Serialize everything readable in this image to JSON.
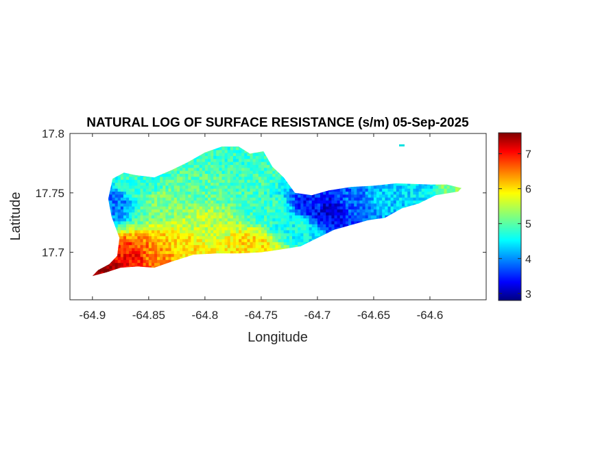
{
  "chart_data": {
    "type": "heatmap",
    "title": "NATURAL LOG OF SURFACE RESISTANCE (s/m) 05-Sep-2025",
    "xlabel": "Longitude",
    "ylabel": "Latitude",
    "xlim": [
      -64.92,
      -64.55
    ],
    "ylim": [
      17.66,
      17.8
    ],
    "xticks": [
      -64.9,
      -64.85,
      -64.8,
      -64.75,
      -64.7,
      -64.65,
      -64.6
    ],
    "xtick_labels": [
      "-64.9",
      "-64.85",
      "-64.8",
      "-64.75",
      "-64.7",
      "-64.65",
      "-64.6"
    ],
    "yticks": [
      17.7,
      17.75,
      17.8
    ],
    "ytick_labels": [
      "17.7",
      "17.75",
      "17.8"
    ],
    "colorbar": {
      "colormap": "jet",
      "clim": [
        2.8,
        7.6
      ],
      "ticks": [
        3,
        4,
        5,
        6,
        7
      ],
      "tick_labels": [
        "3",
        "4",
        "5",
        "6",
        "7"
      ],
      "placement": "right"
    },
    "grid": false,
    "island_outline": [
      [
        -64.9,
        17.68
      ],
      [
        -64.895,
        17.685
      ],
      [
        -64.885,
        17.69
      ],
      [
        -64.878,
        17.697
      ],
      [
        -64.876,
        17.712
      ],
      [
        -64.883,
        17.73
      ],
      [
        -64.886,
        17.745
      ],
      [
        -64.882,
        17.762
      ],
      [
        -64.872,
        17.767
      ],
      [
        -64.862,
        17.765
      ],
      [
        -64.845,
        17.763
      ],
      [
        -64.83,
        17.769
      ],
      [
        -64.815,
        17.776
      ],
      [
        -64.8,
        17.784
      ],
      [
        -64.785,
        17.789
      ],
      [
        -64.77,
        17.789
      ],
      [
        -64.76,
        17.783
      ],
      [
        -64.748,
        17.785
      ],
      [
        -64.74,
        17.772
      ],
      [
        -64.73,
        17.763
      ],
      [
        -64.72,
        17.75
      ],
      [
        -64.705,
        17.748
      ],
      [
        -64.69,
        17.752
      ],
      [
        -64.67,
        17.755
      ],
      [
        -64.65,
        17.756
      ],
      [
        -64.63,
        17.758
      ],
      [
        -64.6,
        17.757
      ],
      [
        -64.585,
        17.757
      ],
      [
        -64.572,
        17.754
      ],
      [
        -64.575,
        17.751
      ],
      [
        -64.595,
        17.748
      ],
      [
        -64.61,
        17.741
      ],
      [
        -64.625,
        17.737
      ],
      [
        -64.64,
        17.729
      ],
      [
        -64.655,
        17.727
      ],
      [
        -64.67,
        17.723
      ],
      [
        -64.685,
        17.719
      ],
      [
        -64.7,
        17.712
      ],
      [
        -64.715,
        17.705
      ],
      [
        -64.735,
        17.702
      ],
      [
        -64.75,
        17.7
      ],
      [
        -64.77,
        17.699
      ],
      [
        -64.79,
        17.699
      ],
      [
        -64.81,
        17.698
      ],
      [
        -64.83,
        17.692
      ],
      [
        -64.845,
        17.687
      ],
      [
        -64.86,
        17.688
      ],
      [
        -64.875,
        17.687
      ],
      [
        -64.888,
        17.683
      ]
    ],
    "islet": [
      -64.625,
      17.79
    ],
    "value_regions": [
      {
        "area": "west coast",
        "approx_value": 3.9
      },
      {
        "area": "southwest coast",
        "approx_value": 7.3
      },
      {
        "area": "south-central plain",
        "approx_value": 6.2
      },
      {
        "area": "central interior",
        "approx_value": 5.3
      },
      {
        "area": "north-central",
        "approx_value": 4.8
      },
      {
        "area": "east-central",
        "approx_value": 3.2
      },
      {
        "area": "east end",
        "approx_value": 4.4
      }
    ]
  }
}
